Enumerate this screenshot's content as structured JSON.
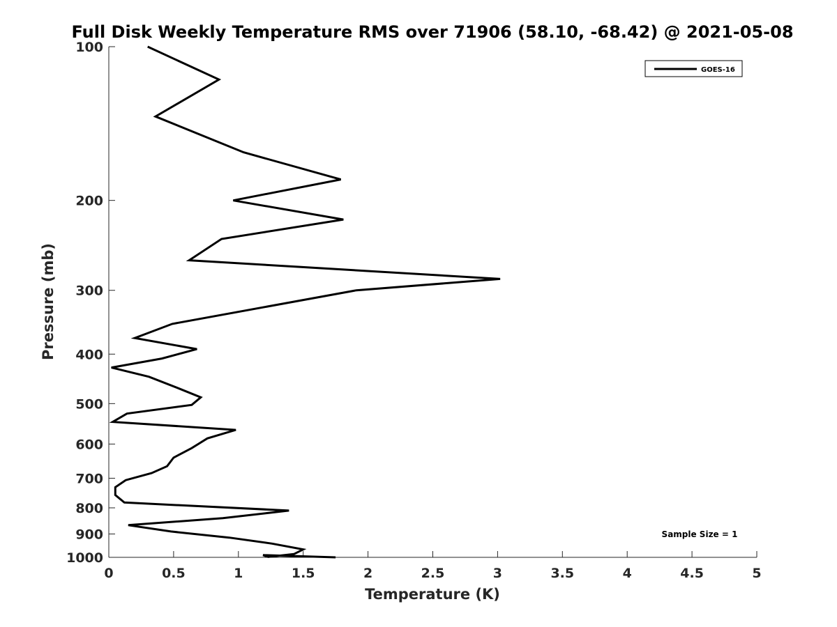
{
  "chart_data": {
    "type": "line",
    "title": "Full Disk Weekly Temperature RMS over 71906 (58.10, -68.42) @ 2021-05-08",
    "xlabel": "Temperature (K)",
    "ylabel": "Pressure (mb)",
    "xlim": [
      0,
      5
    ],
    "ylim": [
      100,
      1000
    ],
    "y_scale": "log",
    "y_reversed": true,
    "x_ticks": [
      0,
      0.5,
      1,
      1.5,
      2,
      2.5,
      3,
      3.5,
      4,
      4.5,
      5
    ],
    "x_tick_labels": [
      "0",
      "0.5",
      "1",
      "1.5",
      "2",
      "2.5",
      "3",
      "3.5",
      "4",
      "4.5",
      "5"
    ],
    "y_ticks": [
      100,
      200,
      300,
      400,
      500,
      600,
      700,
      800,
      900,
      1000
    ],
    "y_tick_labels": [
      "100",
      "200",
      "300",
      "400",
      "500",
      "600",
      "700",
      "800",
      "900",
      "1000"
    ],
    "grid": false,
    "legend_position": "top-right",
    "annotation": "Sample Size = 1",
    "series": [
      {
        "name": "GOES-16",
        "color": "#000000",
        "x": [
          0.3,
          0.85,
          0.36,
          1.04,
          1.79,
          0.96,
          1.81,
          0.87,
          0.62,
          3.02,
          1.91,
          0.49,
          0.2,
          0.68,
          0.41,
          0.02,
          0.31,
          0.55,
          0.71,
          0.64,
          0.14,
          0.03,
          0.98,
          0.76,
          0.64,
          0.5,
          0.45,
          0.33,
          0.13,
          0.05,
          0.05,
          0.12,
          1.39,
          0.88,
          0.15,
          0.48,
          0.93,
          1.26,
          1.5,
          1.43,
          1.23,
          1.19,
          1.75
        ],
        "y": [
          100,
          116,
          137,
          161,
          182,
          200,
          218,
          238,
          262,
          285,
          300,
          349,
          372,
          391,
          408,
          425,
          443,
          468,
          486,
          503,
          523,
          543,
          563,
          585,
          611,
          638,
          663,
          684,
          706,
          729,
          755,
          781,
          810,
          838,
          865,
          890,
          915,
          940,
          965,
          985,
          998,
          990,
          1000
        ]
      }
    ]
  }
}
